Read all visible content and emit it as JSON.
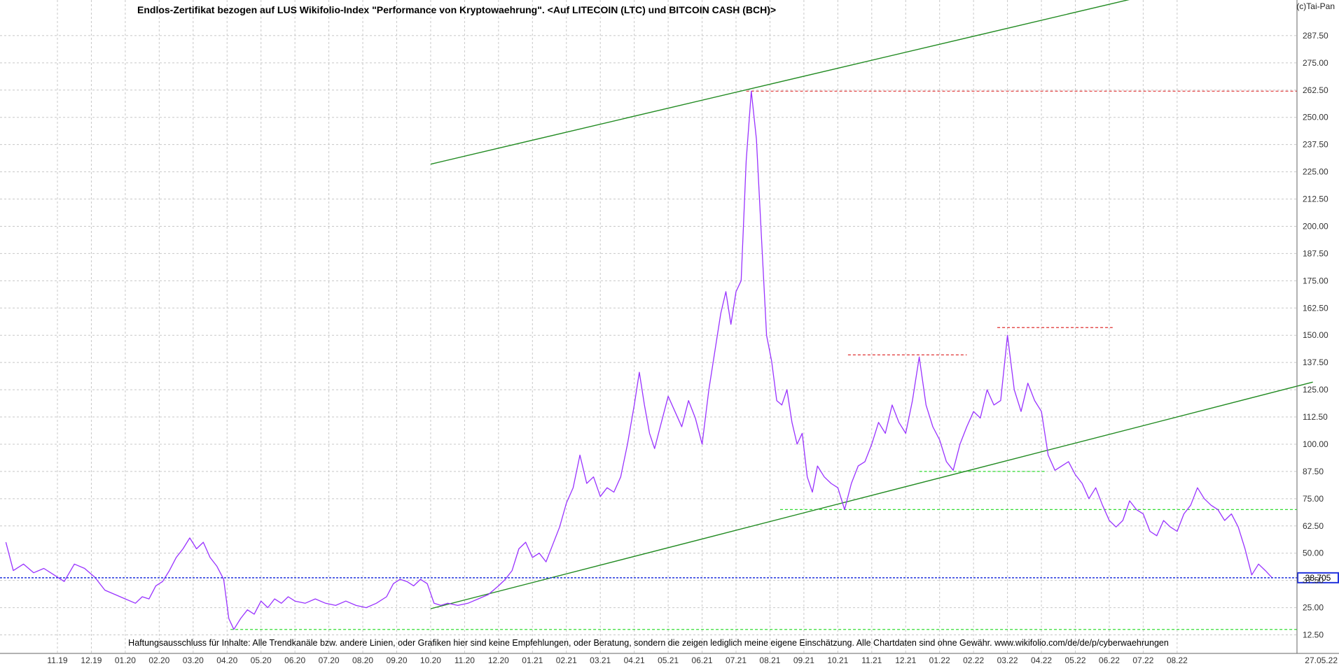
{
  "brand": "(c)Tai-Pan",
  "title": "Endlos-Zertifikat bezogen auf LUS Wikifolio-Index \"Performance von Kryptowaehrung\". <Auf LITECOIN (LTC) und BITCOIN CASH (BCH)>",
  "footer": "Haftungsausschluss für Inhalte: Alle Trendkanäle bzw. andere Linien, oder Grafiken hier sind keine Empfehlungen, oder Beratung, sondern die zeigen lediglich meine eigene Einschätzung. Alle Chartdaten sind ohne Gewähr.  www.wikifolio.com/de/de/p/cyberwaehrungen",
  "colors": {
    "price": "#9933ff",
    "trend": "#228b22",
    "resistance": "#e03030",
    "support": "#33dd33",
    "current": "#2233dd",
    "grid": "#c8c8c8",
    "price_label_bg": "#2233dd"
  },
  "chart_data": {
    "type": "line",
    "x_unit": "month index (0 = 11.2019)",
    "x_tick_labels": [
      "11.19",
      "12.19",
      "01.20",
      "02.20",
      "03.20",
      "04.20",
      "05.20",
      "06.20",
      "07.20",
      "08.20",
      "09.20",
      "10.20",
      "11.20",
      "12.20",
      "01.21",
      "02.21",
      "03.21",
      "04.21",
      "05.21",
      "06.21",
      "07.21",
      "08.21",
      "09.21",
      "10.21",
      "11.21",
      "12.21",
      "01.22",
      "02.22",
      "03.22",
      "04.22",
      "05.22",
      "06.22",
      "07.22",
      "08.22"
    ],
    "x_end_label": "27.05.22",
    "y_ticks": [
      12.5,
      25,
      37.5,
      50,
      62.5,
      75,
      87.5,
      100,
      112.5,
      125,
      137.5,
      150,
      162.5,
      175,
      187.5,
      200,
      212.5,
      225,
      237.5,
      250,
      262.5,
      275,
      287.5
    ],
    "y_tick_labels": [
      "12.50",
      "25.00",
      "37.50",
      "50.00",
      "62.50",
      "75.00",
      "87.50",
      "100.00",
      "112.50",
      "125.00",
      "137.50",
      "150.00",
      "162.50",
      "175.00",
      "187.50",
      "200.00",
      "212.50",
      "225.00",
      "237.50",
      "250.00",
      "262.50",
      "275.00",
      "287.50"
    ],
    "ylim": [
      6.5,
      300
    ],
    "xlim": [
      -1.57,
      35.85
    ],
    "last_price": 38.705,
    "last_price_label": "38.705",
    "series": [
      {
        "points": [
          [
            -1.52,
            55
          ],
          [
            -1.3,
            42
          ],
          [
            -1.0,
            45
          ],
          [
            -0.7,
            41
          ],
          [
            -0.4,
            43
          ],
          [
            -0.1,
            40
          ],
          [
            0.2,
            37
          ],
          [
            0.5,
            45
          ],
          [
            0.8,
            43
          ],
          [
            1.1,
            39
          ],
          [
            1.4,
            33
          ],
          [
            1.7,
            31
          ],
          [
            2.0,
            29
          ],
          [
            2.3,
            27
          ],
          [
            2.5,
            30
          ],
          [
            2.7,
            29
          ],
          [
            2.9,
            35
          ],
          [
            3.1,
            37
          ],
          [
            3.3,
            42
          ],
          [
            3.5,
            48
          ],
          [
            3.7,
            52
          ],
          [
            3.9,
            57
          ],
          [
            4.1,
            52
          ],
          [
            4.3,
            55
          ],
          [
            4.5,
            48
          ],
          [
            4.7,
            44
          ],
          [
            4.9,
            38
          ],
          [
            5.05,
            20
          ],
          [
            5.2,
            15
          ],
          [
            5.4,
            20
          ],
          [
            5.6,
            24
          ],
          [
            5.8,
            22
          ],
          [
            6.0,
            28
          ],
          [
            6.2,
            25
          ],
          [
            6.4,
            29
          ],
          [
            6.6,
            27
          ],
          [
            6.8,
            30
          ],
          [
            7.0,
            28
          ],
          [
            7.3,
            27
          ],
          [
            7.6,
            29
          ],
          [
            7.9,
            27
          ],
          [
            8.2,
            26
          ],
          [
            8.5,
            28
          ],
          [
            8.8,
            26
          ],
          [
            9.1,
            25
          ],
          [
            9.4,
            27
          ],
          [
            9.7,
            30
          ],
          [
            9.9,
            36
          ],
          [
            10.1,
            38
          ],
          [
            10.3,
            37
          ],
          [
            10.5,
            35
          ],
          [
            10.7,
            38
          ],
          [
            10.9,
            36
          ],
          [
            11.1,
            27
          ],
          [
            11.3,
            26
          ],
          [
            11.5,
            27
          ],
          [
            11.8,
            26
          ],
          [
            12.1,
            27
          ],
          [
            12.4,
            29
          ],
          [
            12.7,
            31
          ],
          [
            13.0,
            35
          ],
          [
            13.2,
            38
          ],
          [
            13.4,
            42
          ],
          [
            13.6,
            52
          ],
          [
            13.8,
            55
          ],
          [
            14.0,
            48
          ],
          [
            14.2,
            50
          ],
          [
            14.4,
            46
          ],
          [
            14.6,
            54
          ],
          [
            14.8,
            62
          ],
          [
            15.0,
            73
          ],
          [
            15.2,
            80
          ],
          [
            15.4,
            95
          ],
          [
            15.6,
            82
          ],
          [
            15.8,
            85
          ],
          [
            16.0,
            76
          ],
          [
            16.2,
            80
          ],
          [
            16.4,
            78
          ],
          [
            16.6,
            85
          ],
          [
            16.8,
            100
          ],
          [
            17.0,
            118
          ],
          [
            17.15,
            133
          ],
          [
            17.3,
            118
          ],
          [
            17.45,
            105
          ],
          [
            17.6,
            98
          ],
          [
            17.8,
            110
          ],
          [
            18.0,
            122
          ],
          [
            18.2,
            115
          ],
          [
            18.4,
            108
          ],
          [
            18.6,
            120
          ],
          [
            18.8,
            112
          ],
          [
            19.0,
            100
          ],
          [
            19.2,
            125
          ],
          [
            19.4,
            145
          ],
          [
            19.55,
            160
          ],
          [
            19.7,
            170
          ],
          [
            19.85,
            155
          ],
          [
            20.0,
            170
          ],
          [
            20.15,
            175
          ],
          [
            20.3,
            230
          ],
          [
            20.45,
            262
          ],
          [
            20.6,
            240
          ],
          [
            20.75,
            195
          ],
          [
            20.9,
            150
          ],
          [
            21.05,
            138
          ],
          [
            21.2,
            120
          ],
          [
            21.35,
            118
          ],
          [
            21.5,
            125
          ],
          [
            21.65,
            110
          ],
          [
            21.8,
            100
          ],
          [
            21.95,
            105
          ],
          [
            22.1,
            85
          ],
          [
            22.25,
            78
          ],
          [
            22.4,
            90
          ],
          [
            22.6,
            85
          ],
          [
            22.8,
            82
          ],
          [
            23.0,
            80
          ],
          [
            23.2,
            70
          ],
          [
            23.4,
            82
          ],
          [
            23.6,
            90
          ],
          [
            23.8,
            92
          ],
          [
            24.0,
            100
          ],
          [
            24.2,
            110
          ],
          [
            24.4,
            105
          ],
          [
            24.6,
            118
          ],
          [
            24.8,
            110
          ],
          [
            25.0,
            105
          ],
          [
            25.2,
            120
          ],
          [
            25.4,
            140
          ],
          [
            25.6,
            118
          ],
          [
            25.8,
            108
          ],
          [
            26.0,
            102
          ],
          [
            26.2,
            92
          ],
          [
            26.4,
            88
          ],
          [
            26.6,
            100
          ],
          [
            26.8,
            108
          ],
          [
            27.0,
            115
          ],
          [
            27.2,
            112
          ],
          [
            27.4,
            125
          ],
          [
            27.6,
            118
          ],
          [
            27.8,
            120
          ],
          [
            28.0,
            150
          ],
          [
            28.2,
            125
          ],
          [
            28.4,
            115
          ],
          [
            28.6,
            128
          ],
          [
            28.8,
            120
          ],
          [
            29.0,
            115
          ],
          [
            29.2,
            95
          ],
          [
            29.4,
            88
          ],
          [
            29.6,
            90
          ],
          [
            29.8,
            92
          ],
          [
            30.0,
            86
          ],
          [
            30.2,
            82
          ],
          [
            30.4,
            75
          ],
          [
            30.6,
            80
          ],
          [
            30.8,
            72
          ],
          [
            31.0,
            65
          ],
          [
            31.2,
            62
          ],
          [
            31.4,
            65
          ],
          [
            31.6,
            74
          ],
          [
            31.8,
            70
          ],
          [
            32.0,
            68
          ],
          [
            32.2,
            60
          ],
          [
            32.4,
            58
          ],
          [
            32.6,
            65
          ],
          [
            32.8,
            62
          ],
          [
            33.0,
            60
          ],
          [
            33.2,
            68
          ],
          [
            33.4,
            72
          ],
          [
            33.6,
            80
          ],
          [
            33.8,
            75
          ],
          [
            34.0,
            72
          ],
          [
            34.2,
            70
          ],
          [
            34.4,
            65
          ],
          [
            34.6,
            68
          ],
          [
            34.8,
            62
          ],
          [
            35.0,
            52
          ],
          [
            35.2,
            40
          ],
          [
            35.4,
            45
          ],
          [
            35.6,
            42
          ],
          [
            35.8,
            38.7
          ]
        ]
      }
    ],
    "trend_lines": [
      {
        "kind": "resistance-channel",
        "from": [
          11.0,
          228.5
        ],
        "to": [
          33.9,
          312.5
        ]
      },
      {
        "kind": "support-channel",
        "from": [
          11.0,
          24.5
        ],
        "to": [
          37.0,
          128.5
        ]
      }
    ],
    "horizontal_levels": [
      {
        "kind": "resistance",
        "y": 262,
        "x_from": 20.3,
        "x_to": 37.5
      },
      {
        "kind": "resistance",
        "y": 141,
        "x_from": 23.3,
        "x_to": 26.8
      },
      {
        "kind": "resistance",
        "y": 153.5,
        "x_from": 27.7,
        "x_to": 31.1
      },
      {
        "kind": "support",
        "y": 87.5,
        "x_from": 25.4,
        "x_to": 29.1
      },
      {
        "kind": "support",
        "y": 70,
        "x_from": 21.3,
        "x_to": 37.5
      },
      {
        "kind": "support",
        "y": 15,
        "x_from": 5.1,
        "x_to": 37.5
      }
    ]
  }
}
